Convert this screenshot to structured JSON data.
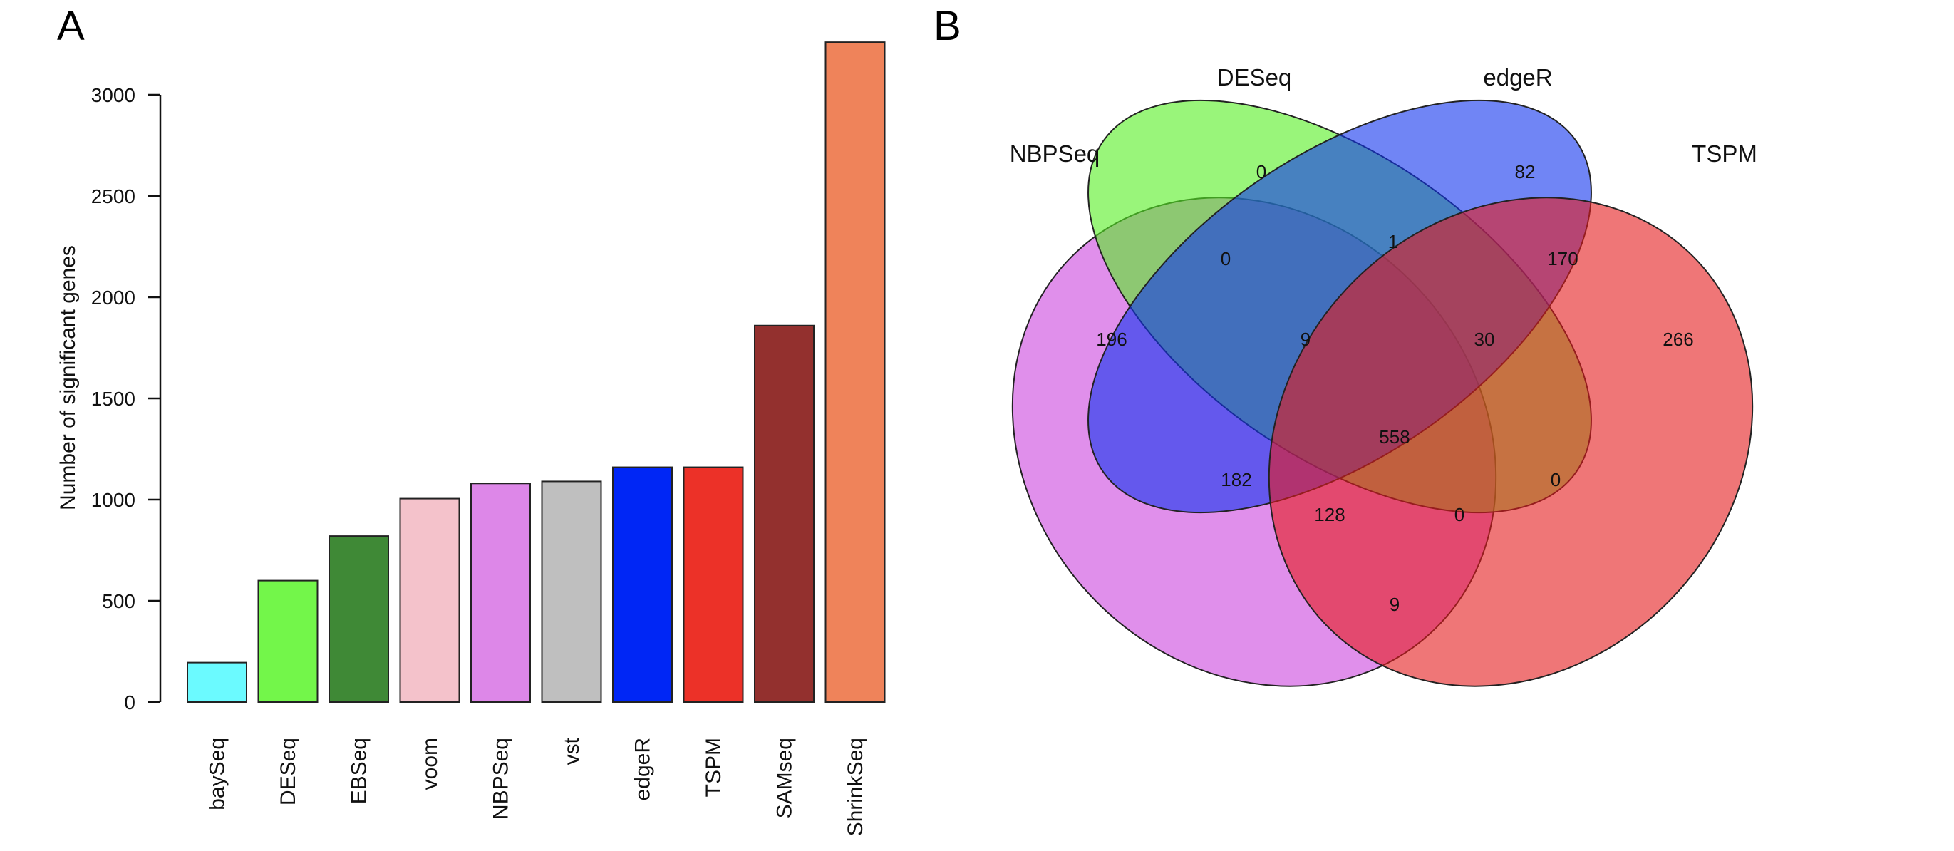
{
  "panels": {
    "a_label": "A",
    "b_label": "B"
  },
  "chart_data": [
    {
      "type": "bar",
      "title": "",
      "xlabel": "",
      "ylabel": "Number of significant genes",
      "ylim": [
        0,
        3250
      ],
      "yticks": [
        0,
        500,
        1000,
        1500,
        2000,
        2500,
        3000
      ],
      "grid": false,
      "categories": [
        "baySeq",
        "DESeq",
        "EBSeq",
        "voom",
        "NBPSeq",
        "vst",
        "edgeR",
        "TSPM",
        "SAMseq",
        "ShrinkSeq"
      ],
      "values": [
        195,
        600,
        820,
        1005,
        1080,
        1090,
        1160,
        1160,
        1860,
        3260
      ],
      "colors": [
        "#6bfaff",
        "#73f64a",
        "#3f8936",
        "#f4c2cb",
        "#dd87e8",
        "#bfbfbf",
        "#0026f5",
        "#ec3128",
        "#93302e",
        "#ef835a"
      ]
    },
    {
      "type": "venn",
      "sets": [
        {
          "name": "NBPSeq",
          "color": "#cc44dd"
        },
        {
          "name": "DESeq",
          "color": "#55ee22"
        },
        {
          "name": "edgeR",
          "color": "#1133ee"
        },
        {
          "name": "TSPM",
          "color": "#e41a1c"
        }
      ],
      "regions": [
        {
          "sets": [
            "NBPSeq"
          ],
          "value": "196"
        },
        {
          "sets": [
            "DESeq"
          ],
          "value": "0"
        },
        {
          "sets": [
            "edgeR"
          ],
          "value": "82"
        },
        {
          "sets": [
            "TSPM"
          ],
          "value": "266"
        },
        {
          "sets": [
            "NBPSeq",
            "DESeq"
          ],
          "value": "0"
        },
        {
          "sets": [
            "DESeq",
            "edgeR"
          ],
          "value": "1"
        },
        {
          "sets": [
            "edgeR",
            "TSPM"
          ],
          "value": "170"
        },
        {
          "sets": [
            "NBPSeq",
            "DESeq",
            "edgeR"
          ],
          "value": "9"
        },
        {
          "sets": [
            "DESeq",
            "edgeR",
            "TSPM"
          ],
          "value": "30"
        },
        {
          "sets": [
            "NBPSeq",
            "DESeq",
            "edgeR",
            "TSPM"
          ],
          "value": "558"
        },
        {
          "sets": [
            "NBPSeq",
            "edgeR"
          ],
          "value": "182"
        },
        {
          "sets": [
            "DESeq",
            "TSPM"
          ],
          "value": "0"
        },
        {
          "sets": [
            "NBPSeq",
            "edgeR",
            "TSPM"
          ],
          "value": "128"
        },
        {
          "sets": [
            "NBPSeq",
            "DESeq",
            "TSPM"
          ],
          "value": "0"
        },
        {
          "sets": [
            "NBPSeq",
            "TSPM"
          ],
          "value": "9"
        }
      ]
    }
  ]
}
